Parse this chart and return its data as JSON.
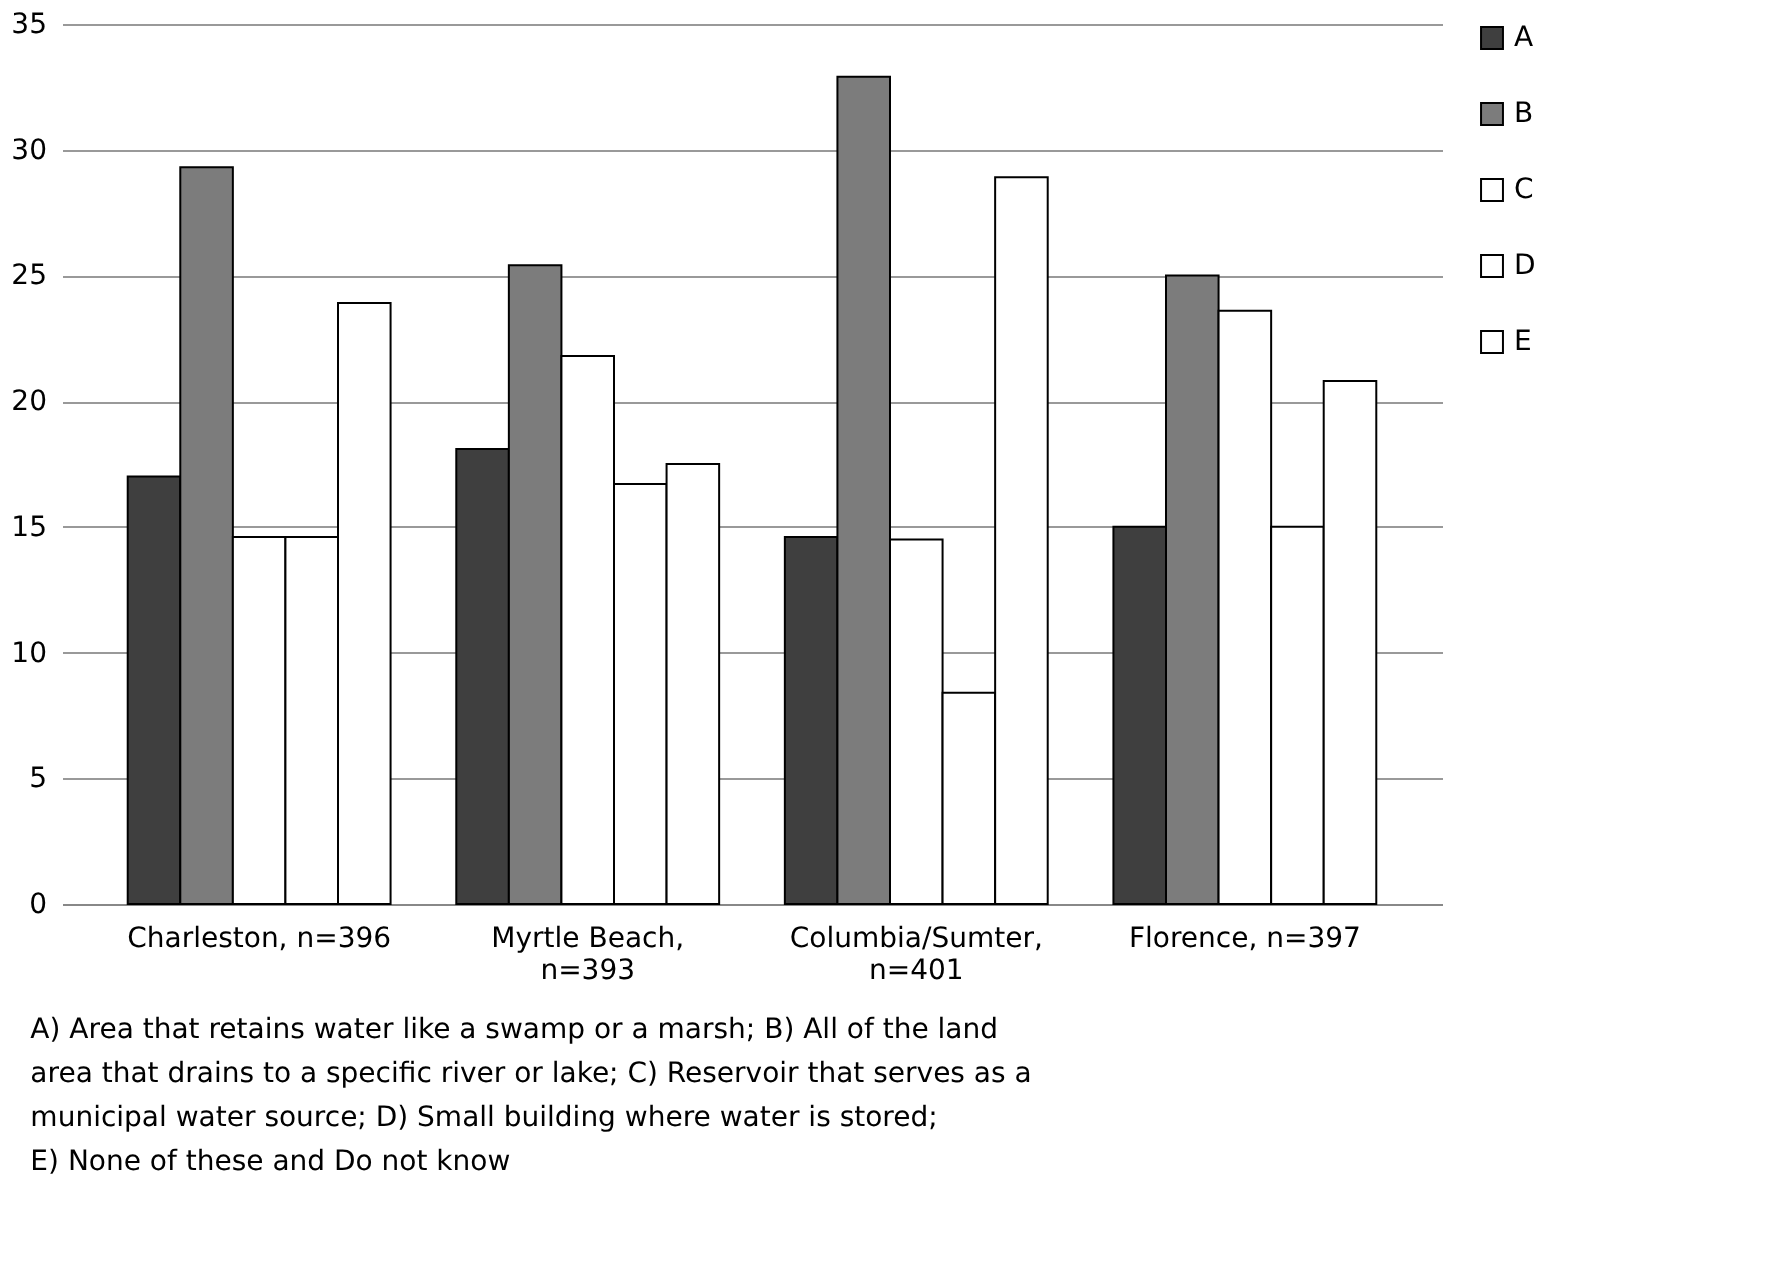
{
  "chart_data": {
    "type": "bar",
    "categories": [
      "Charleston, n=396",
      "Myrtle Beach,\nn=393",
      "Columbia/Sumter,\nn=401",
      "Florence, n=397"
    ],
    "series": [
      {
        "name": "A",
        "color": "#3f3f3f",
        "values": [
          17.0,
          18.1,
          14.6,
          15.0
        ]
      },
      {
        "name": "B",
        "color": "#7c7c7c",
        "values": [
          29.3,
          25.4,
          32.9,
          25.0
        ]
      },
      {
        "name": "C",
        "color": "#ffffff",
        "values": [
          14.6,
          21.8,
          14.5,
          23.6
        ]
      },
      {
        "name": "D",
        "color": "#ffffff",
        "values": [
          14.6,
          16.7,
          8.4,
          15.0
        ]
      },
      {
        "name": "E",
        "color": "#ffffff",
        "values": [
          23.9,
          17.5,
          28.9,
          20.8
        ]
      }
    ],
    "ylim": [
      0,
      35
    ],
    "yticks": [
      0,
      5,
      10,
      15,
      20,
      25,
      30,
      35
    ],
    "grid": "y",
    "legend": "right",
    "annotations": [
      "A) Area that retains water like a  swamp or a marsh; B) All of the land\narea that drains to a specific river or lake; C) Reservoir that serves as a\nmunicipal water source; D) Small building where water is stored;\nE) None of these and Do not know"
    ]
  }
}
